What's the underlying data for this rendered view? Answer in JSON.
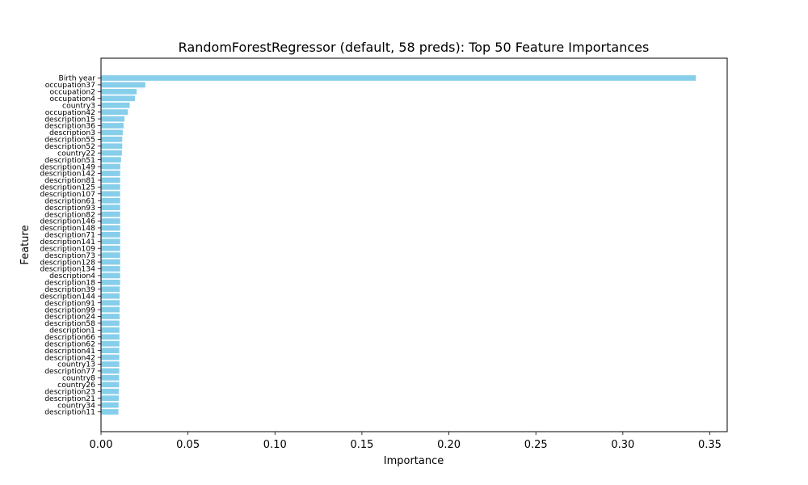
{
  "chart_data": {
    "type": "bar",
    "orientation": "horizontal",
    "title": "RandomForestRegressor (default, 58 preds): Top 50 Feature Importances",
    "xlabel": "Importance",
    "ylabel": "Feature",
    "xlim": [
      0.0,
      0.36
    ],
    "xticks": [
      "0.00",
      "0.05",
      "0.10",
      "0.15",
      "0.20",
      "0.25",
      "0.30",
      "0.35"
    ],
    "bar_color": "#87ceeb",
    "grid": false,
    "categories": [
      "Birth year",
      "occupation37",
      "occupation2",
      "occupation4",
      "country3",
      "occupation42",
      "description15",
      "description36",
      "description3",
      "description55",
      "description52",
      "country22",
      "description51",
      "description149",
      "description142",
      "description81",
      "description125",
      "description107",
      "description61",
      "description93",
      "description82",
      "description146",
      "description148",
      "description71",
      "description141",
      "description109",
      "description73",
      "description128",
      "description134",
      "description4",
      "description18",
      "description39",
      "description144",
      "description91",
      "description99",
      "description24",
      "description58",
      "description1",
      "description66",
      "description62",
      "description41",
      "description42",
      "country13",
      "description77",
      "country8",
      "country26",
      "description23",
      "description21",
      "country34",
      "description11"
    ],
    "values": [
      0.342,
      0.0255,
      0.0205,
      0.0195,
      0.0165,
      0.0155,
      0.0135,
      0.013,
      0.0125,
      0.0122,
      0.0122,
      0.012,
      0.0115,
      0.0111,
      0.011,
      0.011,
      0.011,
      0.011,
      0.011,
      0.011,
      0.011,
      0.011,
      0.011,
      0.011,
      0.011,
      0.011,
      0.011,
      0.011,
      0.011,
      0.011,
      0.011,
      0.0108,
      0.0107,
      0.0107,
      0.0107,
      0.0107,
      0.0106,
      0.0106,
      0.0106,
      0.0106,
      0.0105,
      0.0105,
      0.0105,
      0.0105,
      0.0104,
      0.0104,
      0.0102,
      0.0102,
      0.0101,
      0.01
    ]
  }
}
